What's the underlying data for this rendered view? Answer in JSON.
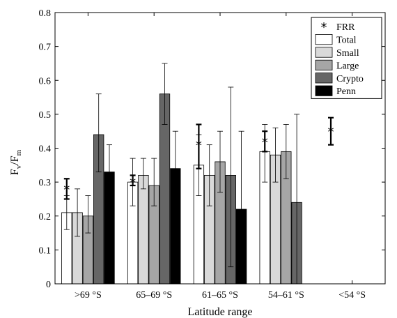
{
  "chart_data": {
    "type": "bar",
    "xlabel": "Latitude range",
    "ylabel_main": "F",
    "ylabel_sub_num": "v",
    "ylabel_slash": "/F",
    "ylabel_sub_den": "m",
    "categories": [
      ">69 °S",
      "65–69 °S",
      "61–65 °S",
      "54–61 °S",
      "<54 °S"
    ],
    "ylim": [
      0,
      0.8
    ],
    "yticks": [
      "0",
      "0.1",
      "0.2",
      "0.3",
      "0.4",
      "0.5",
      "0.6",
      "0.7",
      "0.8"
    ],
    "grid": false,
    "legend_position": "top-right",
    "series": [
      {
        "name": "Total",
        "color": "#ffffff",
        "values": [
          0.21,
          0.3,
          0.35,
          0.39,
          0.0
        ],
        "err_low": [
          0.16,
          0.23,
          0.26,
          0.3,
          0.0
        ],
        "err_high": [
          0.26,
          0.37,
          0.44,
          0.47,
          0.0
        ]
      },
      {
        "name": "Small",
        "color": "#d9d9d9",
        "values": [
          0.21,
          0.32,
          0.32,
          0.38,
          0.0
        ],
        "err_low": [
          0.14,
          0.28,
          0.23,
          0.3,
          0.0
        ],
        "err_high": [
          0.28,
          0.37,
          0.41,
          0.46,
          0.0
        ]
      },
      {
        "name": "Large",
        "color": "#a6a6a6",
        "values": [
          0.2,
          0.29,
          0.36,
          0.39,
          0.0
        ],
        "err_low": [
          0.15,
          0.23,
          0.27,
          0.31,
          0.0
        ],
        "err_high": [
          0.26,
          0.37,
          0.45,
          0.47,
          0.0
        ]
      },
      {
        "name": "Crypto",
        "color": "#666666",
        "values": [
          0.44,
          0.56,
          0.32,
          0.24,
          0.0
        ],
        "err_low": [
          0.33,
          0.47,
          0.05,
          0.0,
          0.0
        ],
        "err_high": [
          0.56,
          0.65,
          0.58,
          0.5,
          0.0
        ]
      },
      {
        "name": "Penn",
        "color": "#000000",
        "values": [
          0.33,
          0.34,
          0.22,
          0.0,
          0.0
        ],
        "err_low": [
          0.24,
          0.22,
          0.0,
          0.0,
          0.0
        ],
        "err_high": [
          0.41,
          0.45,
          0.45,
          0.0,
          0.0
        ]
      }
    ],
    "frr": {
      "name": "FRR",
      "values": [
        0.28,
        0.3,
        0.41,
        0.42,
        0.45
      ],
      "err_low": [
        0.25,
        0.29,
        0.34,
        0.39,
        0.41
      ],
      "err_high": [
        0.31,
        0.32,
        0.47,
        0.45,
        0.49
      ]
    }
  }
}
